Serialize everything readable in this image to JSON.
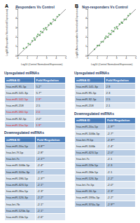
{
  "chart_data": [
    {
      "type": "scatter",
      "panel": "A",
      "title": "Responders Vs Control",
      "x_label": "Log10 (Control Normalized Expression)",
      "y_label": "Log10 (Responders Normalized Expression)",
      "color": "#3a9a3a",
      "grid": false,
      "xlim": [
        0,
        5
      ],
      "xticks": [
        0,
        1,
        2,
        3,
        4,
        5
      ],
      "ylim": [
        0,
        5
      ],
      "yticks": [
        0,
        1,
        2,
        3,
        4,
        5
      ],
      "points": [
        [
          0.6,
          0.8
        ],
        [
          0.9,
          0.9
        ],
        [
          1.1,
          1.3
        ],
        [
          1.3,
          1.2
        ],
        [
          1.5,
          1.6
        ],
        [
          1.7,
          1.9
        ],
        [
          1.8,
          1.7
        ],
        [
          2.0,
          2.1
        ],
        [
          2.1,
          2.3
        ],
        [
          2.3,
          2.2
        ],
        [
          2.4,
          2.6
        ],
        [
          2.6,
          2.5
        ],
        [
          2.7,
          2.9
        ],
        [
          2.9,
          3.0
        ],
        [
          3.0,
          2.8
        ],
        [
          3.2,
          3.3
        ],
        [
          3.4,
          3.5
        ],
        [
          3.5,
          3.4
        ],
        [
          3.7,
          3.9
        ],
        [
          3.9,
          3.8
        ],
        [
          4.1,
          4.2
        ],
        [
          4.3,
          4.4
        ]
      ]
    },
    {
      "type": "scatter",
      "panel": "B",
      "title": "Non-responders Vs Control",
      "x_label": "Log10 (Control Normalized Expression)",
      "y_label": "Log10 (Non-responders Normalized Expression)",
      "color": "#3a9a3a",
      "grid": false,
      "xlim": [
        0,
        5
      ],
      "xticks": [
        0,
        1,
        2,
        3,
        4,
        5
      ],
      "ylim": [
        0,
        5
      ],
      "yticks": [
        0,
        1,
        2,
        3,
        4,
        5
      ],
      "points": [
        [
          0.7,
          0.7
        ],
        [
          1.0,
          1.1
        ],
        [
          1.2,
          1.1
        ],
        [
          1.4,
          1.5
        ],
        [
          1.6,
          1.5
        ],
        [
          1.8,
          1.9
        ],
        [
          1.9,
          2.1
        ],
        [
          2.1,
          2.0
        ],
        [
          2.2,
          2.4
        ],
        [
          2.4,
          2.3
        ],
        [
          2.5,
          2.7
        ],
        [
          2.7,
          2.6
        ],
        [
          2.8,
          3.0
        ],
        [
          3.0,
          3.1
        ],
        [
          3.1,
          2.9
        ],
        [
          3.3,
          3.4
        ],
        [
          3.5,
          3.6
        ],
        [
          3.6,
          3.5
        ],
        [
          3.8,
          3.9
        ],
        [
          4.0,
          3.9
        ],
        [
          4.2,
          4.3
        ],
        [
          4.4,
          4.5
        ]
      ]
    }
  ],
  "tables": [
    [
      {
        "title": "Upregulated miRNAs",
        "header": [
          "miRNA ID",
          "Fold Regulation"
        ],
        "rows": [
          {
            "id": "hsa-miR-95-5p",
            "fold": "5.2*"
          },
          {
            "id": "hsa-miR-141-3p",
            "fold": "5.7*"
          },
          {
            "id": "hsa-miR-142-5p",
            "fold": "2.9*",
            "color": "#e0241b"
          },
          {
            "id": "hsa-miR-218",
            "fold": "2.5"
          },
          {
            "id": "hsa-miR-182-5p",
            "fold": "2.0",
            "color": "#e0241b"
          },
          {
            "id": "hsa-miR-32-5p",
            "fold": "2.0*"
          },
          {
            "id": "hsa-miR-15a-5p",
            "fold": "1.9*",
            "color": "#e0241b"
          }
        ]
      },
      {
        "title": "Downregulated miRNAs",
        "header": [
          "miRNA ID",
          "Fold Regulation"
        ],
        "rows": [
          {
            "id": "hsa-miR-20a-5p",
            "fold": "-3.8**"
          },
          {
            "id": "hsa-let-7f-5p",
            "fold": "-2.8*"
          },
          {
            "id": "hsa-let-7c",
            "fold": "-2.1**"
          },
          {
            "id": "hsa-miR-106b-5p",
            "fold": "-2.4*"
          },
          {
            "id": "hsa-miR-103a-3p",
            "fold": "-2.7*"
          },
          {
            "id": "hsa-miR-196-5p",
            "fold": "-2.3**"
          },
          {
            "id": "hsa-miR-423-5p",
            "fold": "-2.1*"
          },
          {
            "id": "hsa-miR-26a-5p",
            "fold": "-2.3*"
          },
          {
            "id": "hsa-miR-126-3p",
            "fold": "-2.2*"
          },
          {
            "id": "hsa-let-7b",
            "fold": "-2.1*"
          },
          {
            "id": "hsa-miR-125b-5p",
            "fold": "-2.1*"
          },
          {
            "id": "hsa-miR-15b-5p",
            "fold": "-2.6*"
          }
        ]
      }
    ],
    [
      {
        "title": "Upregulated miRNAs",
        "header": [
          "miRNA ID",
          "Fold Regulation"
        ],
        "rows": [
          {
            "id": "hsa-miR-141-3p",
            "fold": "2.9"
          },
          {
            "id": "hsa-miR-95-5p",
            "fold": "2.3"
          },
          {
            "id": "hsa-miR-32-5p",
            "fold": "2.5"
          },
          {
            "id": "hsa-miR-218",
            "fold": "2.1"
          }
        ]
      },
      {
        "title": "Downregulated miRNAs",
        "header": [
          "miRNA ID",
          "Fold Regulation"
        ],
        "rows": [
          {
            "id": "hsa-miR-20a-5p",
            "fold": "-1.9**"
          },
          {
            "id": "hsa-miR-106b-5p",
            "fold": "-2.7*"
          },
          {
            "id": "hsa-let-7f-5p",
            "fold": "-2.3**"
          },
          {
            "id": "hsa-miR-106b",
            "fold": "-2.4*"
          },
          {
            "id": "hsa-miR-423-5p",
            "fold": "-2.0*"
          },
          {
            "id": "hsa-let-7c",
            "fold": "-2.1"
          },
          {
            "id": "hsa-miR-22b-5p",
            "fold": "-2.3"
          },
          {
            "id": "hsa-miR-26b-5p",
            "fold": "-2.1"
          },
          {
            "id": "hsa-miR-126-3p",
            "fold": "-2.2*"
          },
          {
            "id": "hsa-let-7e-5p",
            "fold": "-2.0*"
          },
          {
            "id": "hsa-miR-16-5p",
            "fold": "-2.3*"
          },
          {
            "id": "hsa-miR-193a-5p",
            "fold": "-2.2*"
          },
          {
            "id": "hsa-miR-374a-5p",
            "fold": "-2.9**"
          }
        ]
      }
    ]
  ]
}
